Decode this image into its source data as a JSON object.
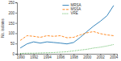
{
  "chart_data": {
    "type": "line",
    "ylabel": "No. isolates",
    "x": [
      1990,
      1991,
      1992,
      1993,
      1994,
      1995,
      1996,
      1997,
      1998,
      1999,
      2000,
      2001,
      2002,
      2003,
      2004
    ],
    "series": [
      {
        "name": "MRSA",
        "line_style": "solid",
        "values": [
          28,
          48,
          58,
          52,
          58,
          55,
          52,
          48,
          55,
          80,
          108,
          135,
          158,
          185,
          235
        ]
      },
      {
        "name": "MSSA",
        "line_style": "dashed",
        "values": [
          65,
          88,
          85,
          80,
          88,
          85,
          88,
          78,
          80,
          92,
          102,
          108,
          98,
          92,
          88
        ]
      },
      {
        "name": "VRE",
        "line_style": "dotted",
        "values": [
          2,
          3,
          3,
          4,
          5,
          6,
          8,
          10,
          14,
          18,
          22,
          28,
          32,
          38,
          45
        ]
      }
    ],
    "xlim": [
      1989.5,
      2004.5
    ],
    "xticks": [
      1990,
      1992,
      1994,
      1996,
      1998,
      2000,
      2002,
      2004
    ],
    "ylim": [
      0,
      250
    ],
    "yticks": [
      0,
      50,
      100,
      150,
      200,
      250
    ],
    "legend": "upper center"
  }
}
